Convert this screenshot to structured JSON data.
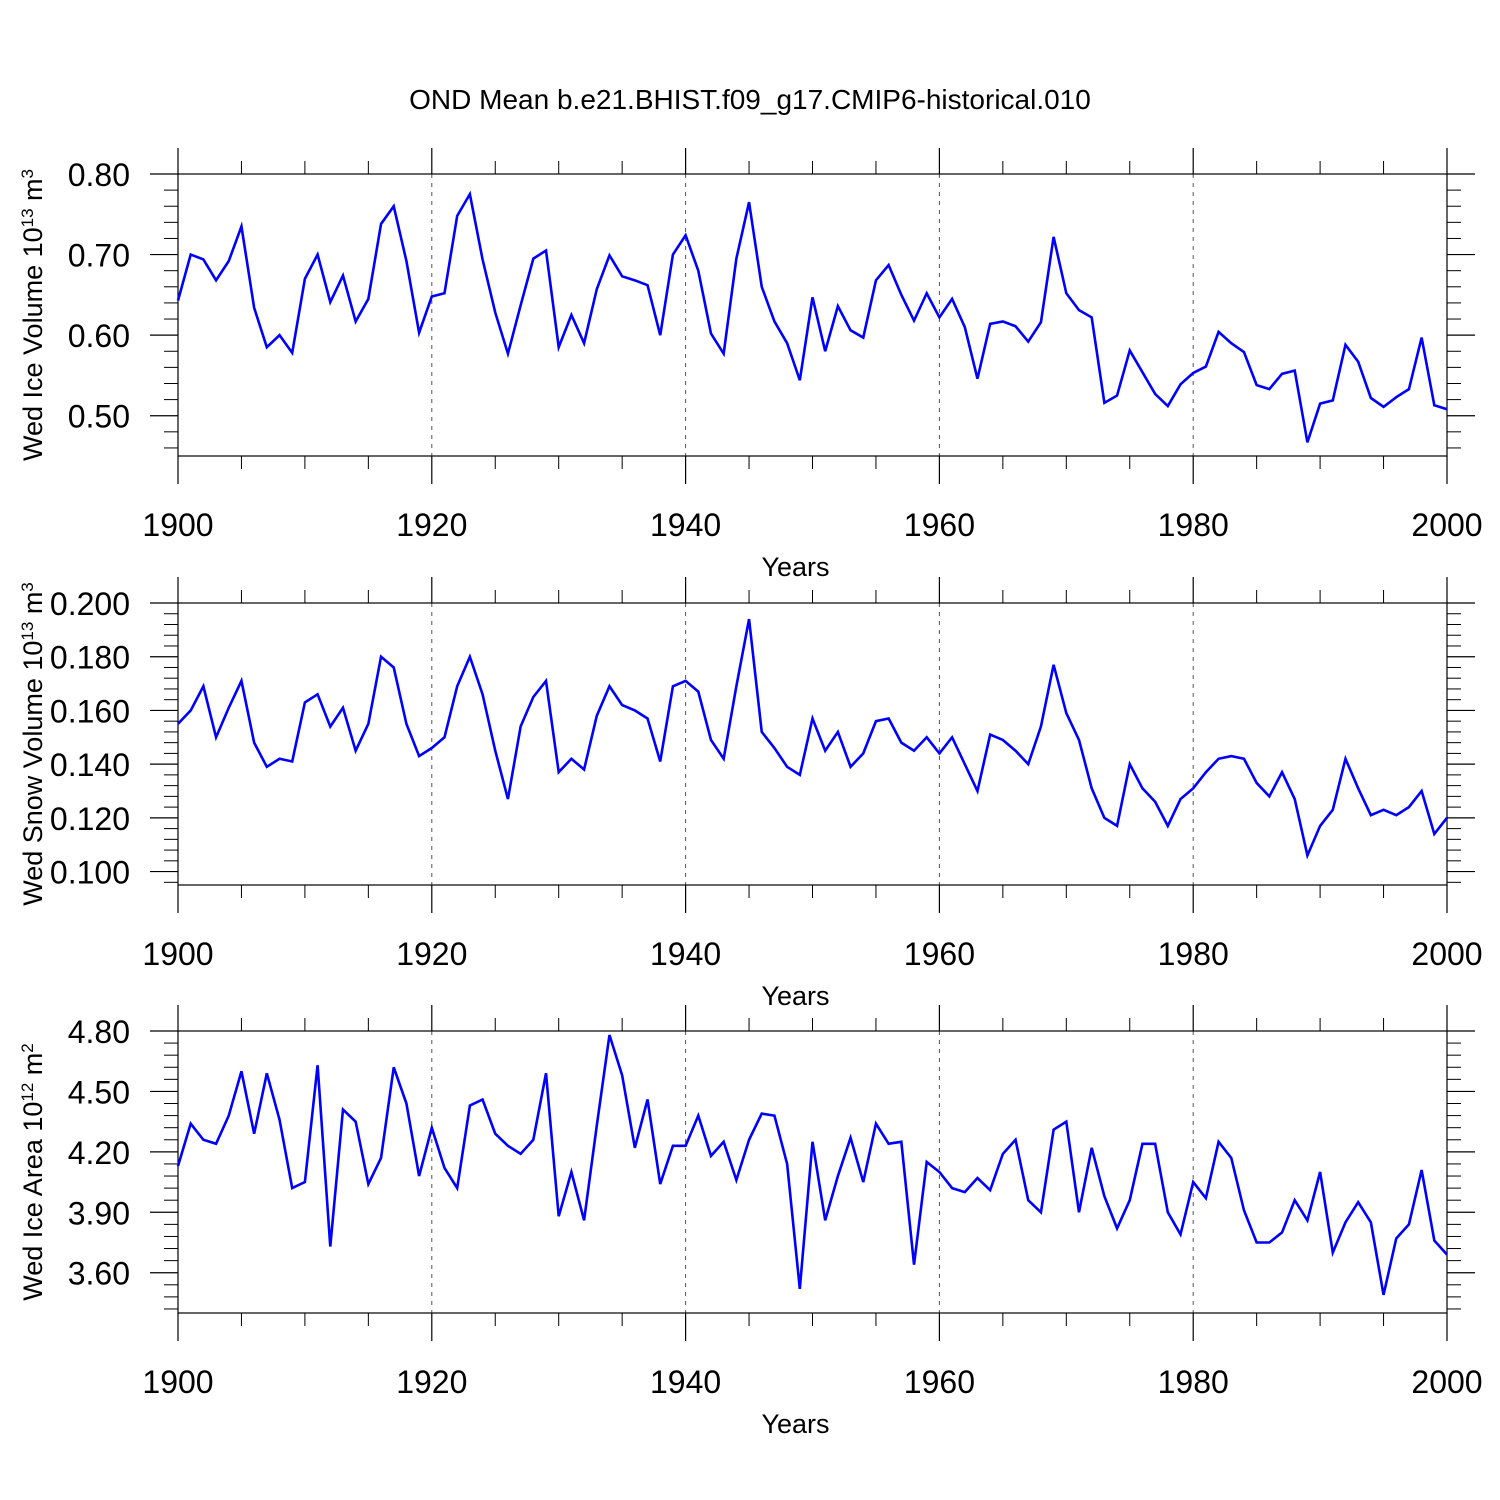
{
  "title": "OND Mean b.e21.BHIST.f09_g17.CMIP6-historical.010",
  "line_color": "#0000ff",
  "chart_data": [
    {
      "type": "line",
      "ylabel_main": "Wed Ice Volume 10",
      "ylabel_exp": "13",
      "ylabel_unit": " m",
      "ylabel_unit_exp": "3",
      "xlabel": "Years",
      "xlim": [
        1900,
        2000
      ],
      "ylim": [
        0.45,
        0.8
      ],
      "yticks": [
        0.5,
        0.6,
        0.7,
        0.8
      ],
      "ytick_labels": [
        "0.50",
        "0.60",
        "0.70",
        "0.80"
      ],
      "xticks": [
        1900,
        1920,
        1940,
        1960,
        1980,
        2000
      ],
      "xtick_labels": [
        "1900",
        "1920",
        "1940",
        "1960",
        "1980",
        "2000"
      ],
      "grid": "dashed vertical at major x ticks",
      "x_start": 1900,
      "values": [
        0.643,
        0.7,
        0.694,
        0.668,
        0.692,
        0.735,
        0.634,
        0.585,
        0.6,
        0.578,
        0.67,
        0.7,
        0.641,
        0.674,
        0.617,
        0.645,
        0.738,
        0.76,
        0.692,
        0.603,
        0.648,
        0.652,
        0.748,
        0.775,
        0.694,
        0.628,
        0.577,
        0.637,
        0.695,
        0.705,
        0.585,
        0.625,
        0.59,
        0.657,
        0.699,
        0.673,
        0.668,
        0.662,
        0.6,
        0.7,
        0.724,
        0.68,
        0.602,
        0.577,
        0.695,
        0.765,
        0.66,
        0.617,
        0.59,
        0.544,
        0.647,
        0.58,
        0.636,
        0.606,
        0.597,
        0.668,
        0.687,
        0.65,
        0.618,
        0.652,
        0.622,
        0.645,
        0.61,
        0.546,
        0.614,
        0.617,
        0.611,
        0.592,
        0.616,
        0.722,
        0.652,
        0.631,
        0.622,
        0.516,
        0.525,
        0.581,
        0.554,
        0.527,
        0.512,
        0.539,
        0.553,
        0.561,
        0.604,
        0.59,
        0.579,
        0.538,
        0.533,
        0.552,
        0.556,
        0.467,
        0.515,
        0.519,
        0.588,
        0.567,
        0.522,
        0.511,
        0.523,
        0.533,
        0.597,
        0.513,
        0.508
      ]
    },
    {
      "type": "line",
      "ylabel_main": "Wed Snow Volume 10",
      "ylabel_exp": "13",
      "ylabel_unit": " m",
      "ylabel_unit_exp": "3",
      "xlabel": "Years",
      "xlim": [
        1900,
        2000
      ],
      "ylim": [
        0.095,
        0.2
      ],
      "yticks": [
        0.1,
        0.12,
        0.14,
        0.16,
        0.18,
        0.2
      ],
      "ytick_labels": [
        "0.100",
        "0.120",
        "0.140",
        "0.160",
        "0.180",
        "0.200"
      ],
      "xticks": [
        1900,
        1920,
        1940,
        1960,
        1980,
        2000
      ],
      "xtick_labels": [
        "1900",
        "1920",
        "1940",
        "1960",
        "1980",
        "2000"
      ],
      "grid": "dashed vertical at major x ticks",
      "x_start": 1900,
      "values": [
        0.155,
        0.16,
        0.169,
        0.15,
        0.161,
        0.171,
        0.148,
        0.139,
        0.142,
        0.141,
        0.163,
        0.166,
        0.154,
        0.161,
        0.145,
        0.155,
        0.18,
        0.176,
        0.155,
        0.143,
        0.146,
        0.15,
        0.169,
        0.18,
        0.166,
        0.145,
        0.127,
        0.154,
        0.165,
        0.171,
        0.137,
        0.142,
        0.138,
        0.158,
        0.169,
        0.162,
        0.16,
        0.157,
        0.141,
        0.169,
        0.171,
        0.167,
        0.149,
        0.142,
        0.169,
        0.194,
        0.152,
        0.146,
        0.139,
        0.136,
        0.157,
        0.145,
        0.152,
        0.139,
        0.144,
        0.156,
        0.157,
        0.148,
        0.145,
        0.15,
        0.144,
        0.15,
        0.14,
        0.13,
        0.151,
        0.149,
        0.145,
        0.14,
        0.154,
        0.177,
        0.159,
        0.149,
        0.131,
        0.12,
        0.117,
        0.14,
        0.131,
        0.126,
        0.117,
        0.127,
        0.131,
        0.137,
        0.142,
        0.143,
        0.142,
        0.133,
        0.128,
        0.137,
        0.127,
        0.106,
        0.117,
        0.123,
        0.142,
        0.131,
        0.121,
        0.123,
        0.121,
        0.124,
        0.13,
        0.114,
        0.12
      ]
    },
    {
      "type": "line",
      "ylabel_main": "Wed Ice Area 10",
      "ylabel_exp": "12",
      "ylabel_unit": " m",
      "ylabel_unit_exp": "2",
      "xlabel": "Years",
      "xlim": [
        1900,
        2000
      ],
      "ylim": [
        3.4,
        4.8
      ],
      "yticks": [
        3.6,
        3.9,
        4.2,
        4.5,
        4.8
      ],
      "ytick_labels": [
        "3.60",
        "3.90",
        "4.20",
        "4.50",
        "4.80"
      ],
      "xticks": [
        1900,
        1920,
        1940,
        1960,
        1980,
        2000
      ],
      "xtick_labels": [
        "1900",
        "1920",
        "1940",
        "1960",
        "1980",
        "2000"
      ],
      "grid": "dashed vertical at major x ticks",
      "x_start": 1900,
      "values": [
        4.13,
        4.34,
        4.26,
        4.24,
        4.38,
        4.6,
        4.29,
        4.59,
        4.36,
        4.02,
        4.05,
        4.63,
        3.73,
        4.41,
        4.35,
        4.04,
        4.17,
        4.62,
        4.44,
        4.08,
        4.32,
        4.12,
        4.02,
        4.43,
        4.46,
        4.29,
        4.23,
        4.19,
        4.26,
        4.59,
        3.88,
        4.1,
        3.86,
        4.33,
        4.78,
        4.58,
        4.22,
        4.46,
        4.04,
        4.23,
        4.23,
        4.38,
        4.18,
        4.25,
        4.06,
        4.26,
        4.39,
        4.38,
        4.14,
        3.52,
        4.25,
        3.86,
        4.08,
        4.27,
        4.05,
        4.34,
        4.24,
        4.25,
        3.64,
        4.15,
        4.1,
        4.02,
        4.0,
        4.07,
        4.01,
        4.19,
        4.26,
        3.96,
        3.9,
        4.31,
        4.35,
        3.9,
        4.22,
        3.98,
        3.82,
        3.96,
        4.24,
        4.24,
        3.9,
        3.79,
        4.05,
        3.97,
        4.25,
        4.17,
        3.91,
        3.75,
        3.75,
        3.8,
        3.96,
        3.86,
        4.1,
        3.7,
        3.85,
        3.95,
        3.85,
        3.49,
        3.77,
        3.84,
        4.11,
        3.76,
        3.69
      ]
    }
  ]
}
